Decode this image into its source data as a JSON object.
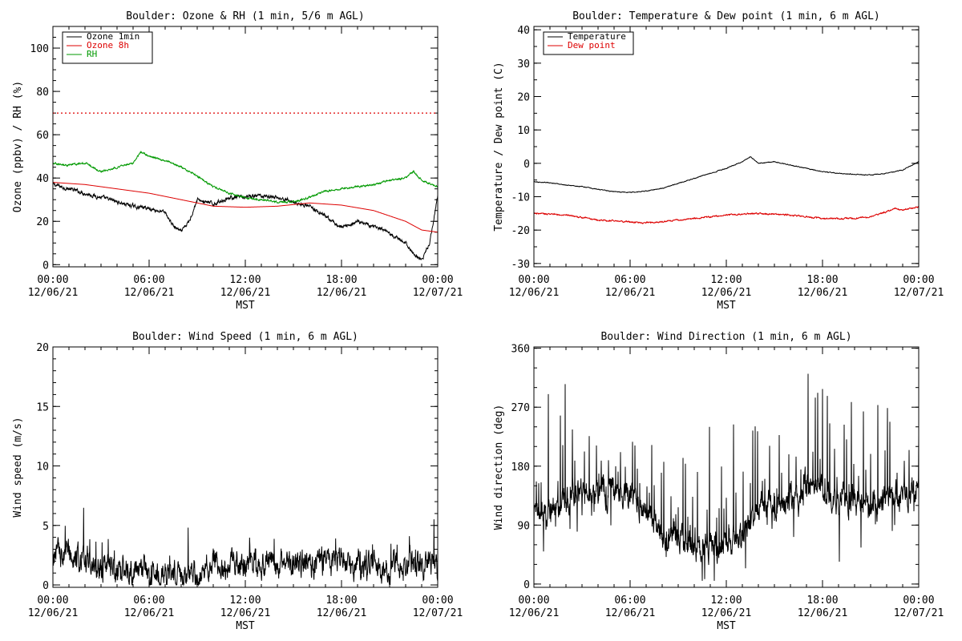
{
  "figure": {
    "colors": {
      "black": "#000000",
      "red": "#dd0000",
      "green": "#009900",
      "background": "#ffffff"
    }
  },
  "chart_data": [
    {
      "type": "line",
      "title": "Boulder: Ozone & RH (1 min, 5/6 m AGL)",
      "ylabel": "Ozone (ppbv) / RH (%)",
      "xlabel": "MST",
      "xlim": [
        0,
        24
      ],
      "ylim": [
        -1,
        110
      ],
      "yticks": [
        0,
        20,
        40,
        60,
        80,
        100
      ],
      "yminor": 4,
      "xticks": [
        {
          "value": 0,
          "time": "00:00",
          "date": "12/06/21"
        },
        {
          "value": 6,
          "time": "06:00",
          "date": "12/06/21"
        },
        {
          "value": 12,
          "time": "12:00",
          "date": "12/06/21"
        },
        {
          "value": 18,
          "time": "18:00",
          "date": "12/06/21"
        },
        {
          "value": 24,
          "time": "00:00",
          "date": "12/07/21"
        }
      ],
      "xminor": 6,
      "legend": {
        "position": "top-left"
      },
      "reference_lines": [
        {
          "y": 70,
          "color": "#dd0000",
          "style": "dotted"
        }
      ],
      "series": [
        {
          "name": "Ozone 1min",
          "color": "#000000",
          "noise": 1.2,
          "spike_every": 0,
          "spike_amp": 0,
          "x": [
            0,
            1,
            2,
            3,
            4,
            5,
            6,
            7,
            7.5,
            8,
            8.5,
            9,
            10,
            11,
            12,
            13,
            14,
            15,
            16,
            17,
            18,
            19,
            20,
            21,
            22,
            22.5,
            23,
            23.5,
            24
          ],
          "y": [
            37,
            35,
            33,
            31,
            29,
            27,
            26,
            24,
            18,
            15,
            20,
            30,
            28,
            31,
            31,
            32,
            31,
            29,
            27,
            22,
            17,
            20,
            18,
            14,
            10,
            5,
            2,
            10,
            32
          ]
        },
        {
          "name": "Ozone 8h",
          "color": "#dd0000",
          "noise": 0,
          "spike_every": 0,
          "spike_amp": 0,
          "x": [
            0,
            2,
            4,
            6,
            8,
            10,
            12,
            14,
            16,
            18,
            20,
            22,
            23,
            24
          ],
          "y": [
            38,
            37,
            35,
            33,
            30,
            27,
            26.5,
            27,
            28.5,
            27.5,
            25,
            20,
            16,
            15
          ]
        },
        {
          "name": "RH",
          "color": "#009900",
          "noise": 0.6,
          "spike_every": 0,
          "spike_amp": 0,
          "x": [
            0,
            1,
            2,
            3,
            4,
            5,
            5.5,
            6,
            7,
            8,
            9,
            10,
            11,
            12,
            13,
            14,
            15,
            16,
            17,
            18,
            19,
            20,
            21,
            22,
            22.5,
            23,
            24
          ],
          "y": [
            47,
            46,
            47,
            43,
            45,
            47,
            52,
            50,
            48,
            45,
            41,
            36,
            33,
            31,
            30,
            29,
            29,
            31,
            34,
            35,
            36,
            37,
            39,
            40,
            43,
            39,
            36
          ]
        }
      ]
    },
    {
      "type": "line",
      "title": "Boulder: Temperature & Dew point (1 min, 6 m AGL)",
      "ylabel": "Temperature / Dew point (C)",
      "xlabel": "MST",
      "xlim": [
        0,
        24
      ],
      "ylim": [
        -31,
        41
      ],
      "yticks": [
        -30,
        -20,
        -10,
        0,
        10,
        20,
        30,
        40
      ],
      "yminor": 2,
      "xticks": [
        {
          "value": 0,
          "time": "00:00",
          "date": "12/06/21"
        },
        {
          "value": 6,
          "time": "06:00",
          "date": "12/06/21"
        },
        {
          "value": 12,
          "time": "12:00",
          "date": "12/06/21"
        },
        {
          "value": 18,
          "time": "18:00",
          "date": "12/06/21"
        },
        {
          "value": 24,
          "time": "00:00",
          "date": "12/07/21"
        }
      ],
      "xminor": 6,
      "legend": {
        "position": "top-left"
      },
      "reference_lines": [],
      "series": [
        {
          "name": "Temperature",
          "color": "#000000",
          "noise": 0.15,
          "spike_every": 0,
          "spike_amp": 0,
          "x": [
            0,
            1,
            2,
            3,
            4,
            5,
            6,
            7,
            8,
            9,
            10,
            11,
            12,
            13,
            13.5,
            14,
            15,
            16,
            17,
            18,
            19,
            20,
            21,
            22,
            23,
            24
          ],
          "y": [
            -5.5,
            -5.8,
            -6.5,
            -7,
            -7.8,
            -8.5,
            -8.7,
            -8.3,
            -7.5,
            -6,
            -4.5,
            -3,
            -1.5,
            0.5,
            2,
            0,
            0.5,
            -0.5,
            -1.5,
            -2.5,
            -3,
            -3.3,
            -3.5,
            -3,
            -2,
            0.5
          ]
        },
        {
          "name": "Dew point",
          "color": "#dd0000",
          "noise": 0.3,
          "spike_every": 0,
          "spike_amp": 0,
          "x": [
            0,
            2,
            4,
            6,
            7,
            8,
            10,
            12,
            14,
            16,
            18,
            20,
            21,
            22,
            22.5,
            23,
            24
          ],
          "y": [
            -15,
            -15.5,
            -17,
            -17.5,
            -17.8,
            -17.5,
            -16.5,
            -15.5,
            -15,
            -15.5,
            -16.5,
            -16.5,
            -16,
            -14.5,
            -13.5,
            -14,
            -13
          ]
        }
      ]
    },
    {
      "type": "line",
      "title": "Boulder: Wind Speed (1 min, 6 m AGL)",
      "ylabel": "Wind speed (m/s)",
      "xlabel": "MST",
      "xlim": [
        0,
        24
      ],
      "ylim": [
        -0.2,
        20
      ],
      "yticks": [
        0,
        5,
        10,
        15,
        20
      ],
      "yminor": 5,
      "xticks": [
        {
          "value": 0,
          "time": "00:00",
          "date": "12/06/21"
        },
        {
          "value": 6,
          "time": "06:00",
          "date": "12/06/21"
        },
        {
          "value": 12,
          "time": "12:00",
          "date": "12/06/21"
        },
        {
          "value": 18,
          "time": "18:00",
          "date": "12/06/21"
        },
        {
          "value": 24,
          "time": "00:00",
          "date": "12/07/21"
        }
      ],
      "xminor": 6,
      "legend": {
        "position": "none"
      },
      "reference_lines": [],
      "series": [
        {
          "name": "",
          "color": "#000000",
          "noise": 1.6,
          "spike_every": 23,
          "spike_amp": 2.5,
          "clip_min": 0,
          "x": [
            0,
            1,
            2,
            3,
            4,
            5,
            6,
            7,
            8,
            9,
            10,
            11,
            12,
            13,
            14,
            15,
            16,
            17,
            18,
            19,
            20,
            21,
            22,
            23,
            24
          ],
          "y": [
            2.5,
            2.5,
            2,
            1.5,
            1.3,
            1,
            0.8,
            0.7,
            0.8,
            1,
            1.5,
            2,
            2,
            2,
            2,
            2,
            1.8,
            1.8,
            2,
            1.8,
            1.5,
            1.5,
            1.8,
            2,
            1.5
          ]
        }
      ]
    },
    {
      "type": "line",
      "title": "Boulder: Wind Direction (1 min, 6 m AGL)",
      "ylabel": "Wind direction (deg)",
      "xlabel": "MST",
      "xlim": [
        0,
        24
      ],
      "ylim": [
        -5,
        362
      ],
      "yticks": [
        0,
        90,
        180,
        270,
        360
      ],
      "yminor": 3,
      "xticks": [
        {
          "value": 0,
          "time": "00:00",
          "date": "12/06/21"
        },
        {
          "value": 6,
          "time": "06:00",
          "date": "12/06/21"
        },
        {
          "value": 12,
          "time": "12:00",
          "date": "12/06/21"
        },
        {
          "value": 18,
          "time": "18:00",
          "date": "12/06/21"
        },
        {
          "value": 24,
          "time": "00:00",
          "date": "12/07/21"
        }
      ],
      "xminor": 6,
      "legend": {
        "position": "none"
      },
      "reference_lines": [],
      "series": [
        {
          "name": "",
          "color": "#000000",
          "noise": 30,
          "spike_every": 9,
          "spike_amp": 140,
          "clip_min": 5,
          "clip_max": 358,
          "x": [
            0,
            1,
            2,
            3,
            4,
            5,
            6,
            7,
            8,
            9,
            10,
            11,
            12,
            13,
            14,
            15,
            16,
            17,
            18,
            19,
            20,
            21,
            22,
            23,
            24
          ],
          "y": [
            100,
            115,
            130,
            145,
            135,
            150,
            140,
            110,
            80,
            70,
            60,
            60,
            60,
            80,
            110,
            130,
            130,
            150,
            140,
            130,
            130,
            120,
            130,
            140,
            150
          ]
        }
      ]
    }
  ]
}
